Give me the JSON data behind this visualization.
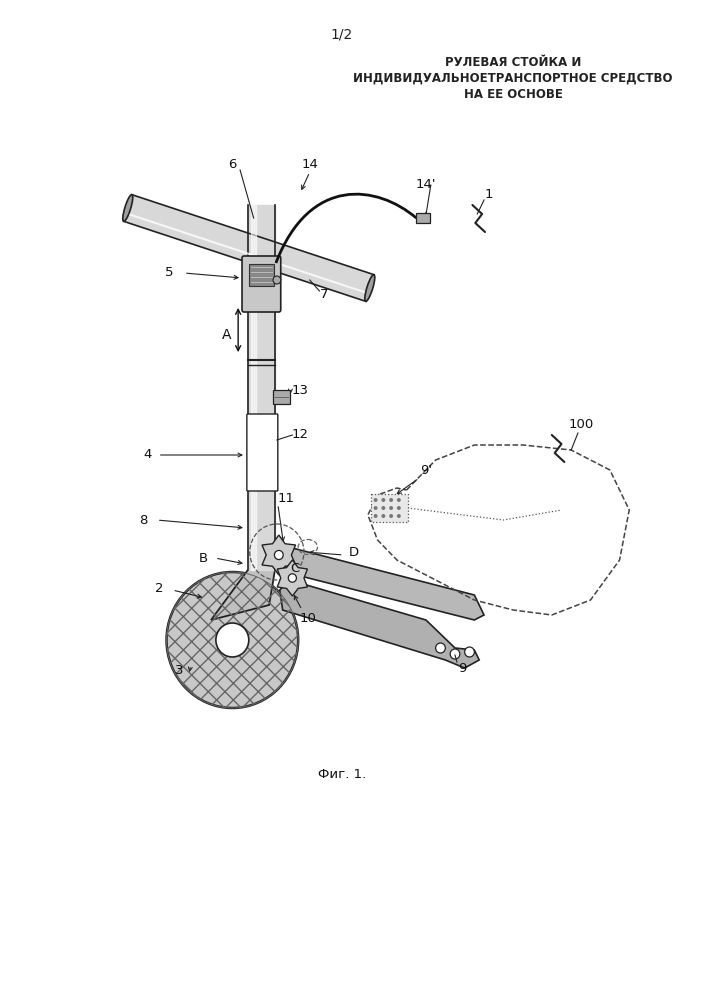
{
  "title_line1": "1/2",
  "title_line2": "РУЛЕВАЯ СТОЙКА И",
  "title_line3": "ИНДИВИДУАЛЬНОЕТРАНСПОРТНОЕ СРЕДСТВО",
  "title_line4": "НА ЕЕ ОСНОВЕ",
  "fig_caption": "Фиг. 1.",
  "bg_color": "#ffffff",
  "line_color": "#000000",
  "gray_light": "#d8d8d8",
  "gray_mid": "#a0a0a0",
  "gray_dark": "#555555",
  "edge_color": "#222222"
}
